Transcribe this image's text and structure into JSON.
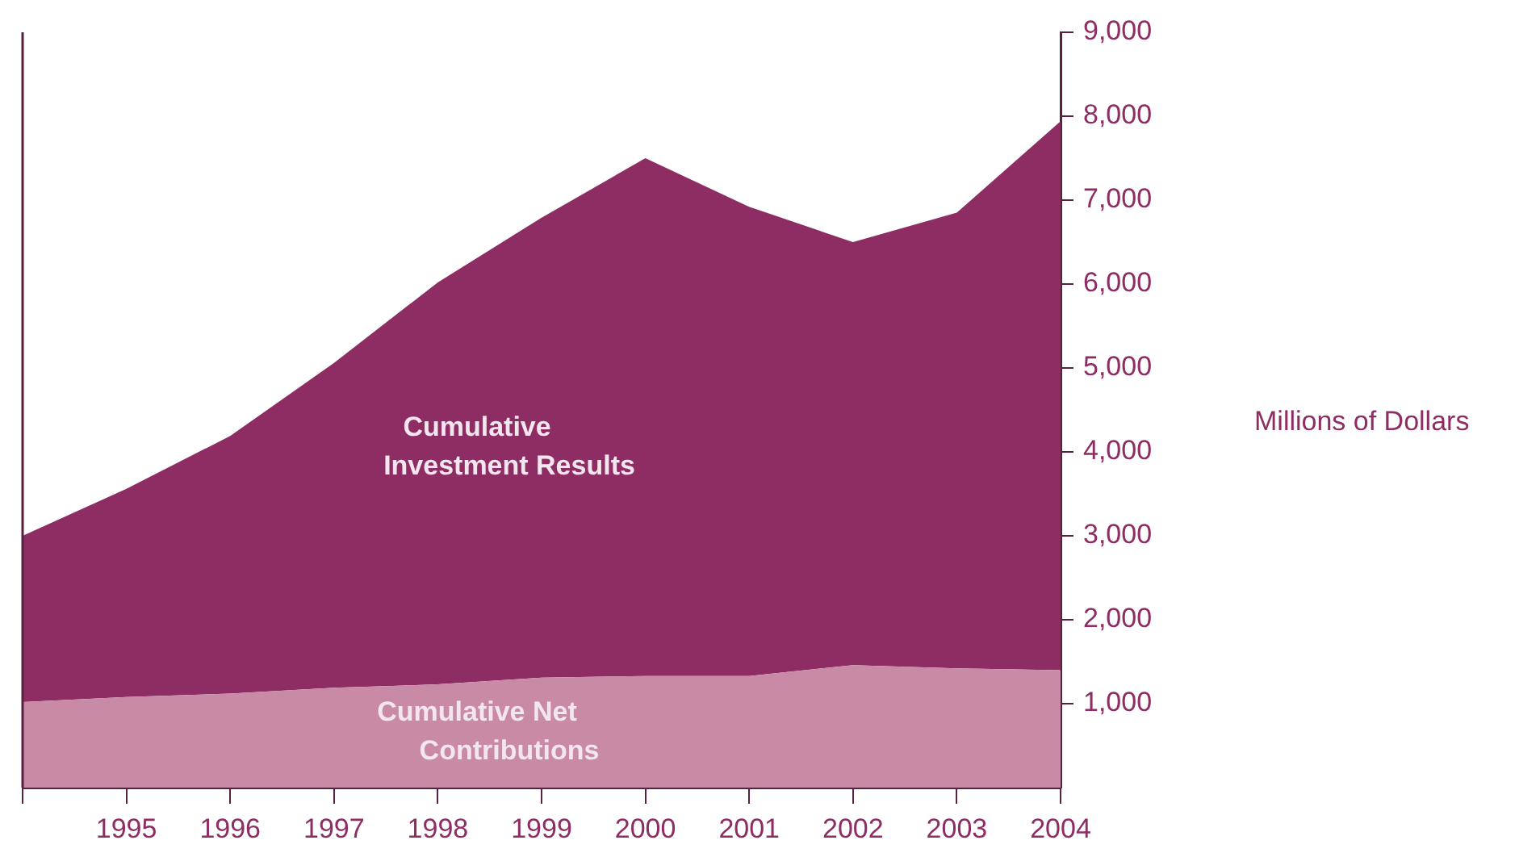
{
  "chart_data": {
    "type": "area",
    "stacked": true,
    "ylabel": "Millions of Dollars",
    "x": [
      1994,
      1995,
      1996,
      1997,
      1998,
      1999,
      2000,
      2001,
      2002,
      2003,
      2004
    ],
    "xlim": [
      1994,
      2004
    ],
    "xticks": [
      {
        "value": 1994,
        "label": null
      },
      1995,
      1996,
      1997,
      1998,
      1999,
      2000,
      2001,
      2002,
      2003,
      2004
    ],
    "ylim": [
      0,
      9000
    ],
    "yticks": [
      {
        "value": 1000,
        "label": "1,000"
      },
      {
        "value": 2000,
        "label": "2,000"
      },
      {
        "value": 3000,
        "label": "3,000"
      },
      {
        "value": 4000,
        "label": "4,000"
      },
      {
        "value": 5000,
        "label": "5,000"
      },
      {
        "value": 6000,
        "label": "6,000"
      },
      {
        "value": 7000,
        "label": "7,000"
      },
      {
        "value": 8000,
        "label": "8,000"
      },
      {
        "value": 9000,
        "label": "9,000"
      }
    ],
    "grid": false,
    "legend": false,
    "series": [
      {
        "name": "Cumulative Net Contributions",
        "color": "#c98aa6",
        "values": [
          1020,
          1080,
          1120,
          1190,
          1230,
          1310,
          1330,
          1330,
          1460,
          1420,
          1400
        ]
      },
      {
        "name": "Cumulative Investment Results",
        "color": "#8e2d63",
        "values": [
          1980,
          2480,
          3070,
          3870,
          4790,
          5480,
          6170,
          5590,
          5040,
          5430,
          6540
        ]
      }
    ]
  }
}
